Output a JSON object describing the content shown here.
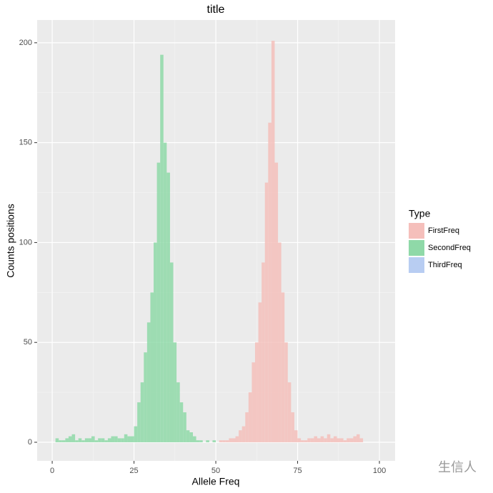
{
  "chart_data": {
    "type": "histogram",
    "title": "title",
    "xlabel": "Allele Freq",
    "ylabel": "Counts positions",
    "legend_title": "Type",
    "legend": "right",
    "grid": true,
    "background": "#ebebeb",
    "watermark": "生信人",
    "xlim": [
      -4.6,
      104.8
    ],
    "ylim": [
      -9.3,
      211.4
    ],
    "xticks": [
      0,
      25,
      50,
      75,
      100
    ],
    "yticks": [
      0,
      50,
      100,
      150,
      200
    ],
    "bins": [
      0,
      1,
      2,
      3,
      4,
      5,
      6,
      7,
      8,
      9,
      10,
      11,
      12,
      13,
      14,
      15,
      16,
      17,
      18,
      19,
      20,
      21,
      22,
      23,
      24,
      25,
      26,
      27,
      28,
      29,
      30,
      31,
      32,
      33,
      34,
      35,
      36,
      37,
      38,
      39,
      40,
      41,
      42,
      43,
      44,
      45,
      46,
      47,
      48,
      49,
      50,
      51,
      52,
      53,
      54,
      55,
      56,
      57,
      58,
      59,
      60,
      61,
      62,
      63,
      64,
      65,
      66,
      67,
      68,
      69,
      70,
      71,
      72,
      73,
      74,
      75,
      76,
      77,
      78,
      79,
      80,
      81,
      82,
      83,
      84,
      85,
      86,
      87,
      88,
      89,
      90,
      91,
      92,
      93,
      94,
      95,
      96,
      97,
      98,
      99,
      100
    ],
    "series": [
      {
        "name": "FirstFreq",
        "color": "#f5bfbb",
        "values": [
          0,
          0,
          0,
          0,
          0,
          0,
          0,
          0,
          0,
          0,
          0,
          0,
          0,
          0,
          0,
          0,
          0,
          0,
          0,
          0,
          0,
          0,
          0,
          0,
          0,
          0,
          0,
          0,
          0,
          0,
          0,
          0,
          0,
          0,
          0,
          0,
          0,
          0,
          0,
          0,
          0,
          0,
          0,
          0,
          0,
          0,
          0,
          0,
          0,
          0,
          0,
          1,
          1,
          1,
          2,
          2,
          3,
          6,
          8,
          15,
          25,
          40,
          50,
          70,
          90,
          130,
          160,
          201,
          140,
          100,
          75,
          50,
          30,
          15,
          6,
          2,
          1,
          1,
          2,
          2,
          3,
          2,
          3,
          2,
          4,
          2,
          3,
          2,
          2,
          1,
          2,
          2,
          3,
          4,
          2,
          0,
          0,
          0,
          0,
          0
        ]
      },
      {
        "name": "SecondFreq",
        "color": "#8fd9a8",
        "values": [
          0,
          2,
          1,
          1,
          2,
          3,
          4,
          1,
          2,
          1,
          2,
          2,
          3,
          1,
          2,
          2,
          1,
          2,
          3,
          3,
          2,
          2,
          4,
          3,
          3,
          8,
          20,
          30,
          45,
          60,
          75,
          100,
          140,
          194,
          150,
          135,
          90,
          50,
          30,
          20,
          15,
          6,
          5,
          3,
          1,
          1,
          0,
          1,
          0,
          1,
          0,
          0,
          0,
          0,
          0,
          0,
          0,
          0,
          0,
          0,
          0,
          0,
          0,
          0,
          0,
          0,
          0,
          0,
          0,
          0,
          0,
          0,
          0,
          0,
          0,
          0,
          0,
          0,
          0,
          0,
          0,
          0,
          0,
          0,
          0,
          0,
          0,
          0,
          0,
          0,
          0,
          0,
          0,
          0,
          0,
          0,
          0,
          0,
          0,
          0
        ]
      },
      {
        "name": "ThirdFreq",
        "color": "#b8cdf2",
        "values": [
          0,
          0,
          0,
          0,
          0,
          0,
          0,
          0,
          0,
          0,
          0,
          0,
          0,
          0,
          0,
          0,
          0,
          0,
          0,
          0,
          0,
          0,
          0,
          0,
          0,
          0,
          0,
          0,
          0,
          0,
          0,
          0,
          0,
          0,
          0,
          0,
          0,
          0,
          0,
          0,
          0,
          0,
          0,
          0,
          0,
          0,
          0,
          0,
          0,
          0,
          0,
          0,
          0,
          0,
          0,
          0,
          0,
          0,
          0,
          0,
          0,
          0,
          0,
          0,
          0,
          0,
          0,
          0,
          0,
          0,
          0,
          0,
          0,
          0,
          0,
          0,
          0,
          0,
          0,
          0,
          0,
          0,
          0,
          0,
          0,
          0,
          0,
          0,
          0,
          0,
          0,
          0,
          0,
          0,
          0,
          0,
          0,
          0,
          0,
          0
        ]
      }
    ]
  }
}
